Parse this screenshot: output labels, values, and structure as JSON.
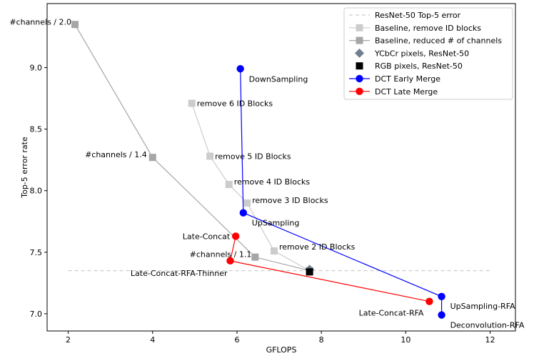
{
  "chart_data": {
    "type": "line",
    "title": "",
    "xlabel": "GFLOPS",
    "ylabel": "Top-5 error rate",
    "xlim": [
      1.5,
      12.6
    ],
    "ylim": [
      6.86,
      9.52
    ],
    "xticks": [
      2,
      4,
      6,
      8,
      10,
      12
    ],
    "yticks": [
      7.0,
      7.5,
      8.0,
      8.5,
      9.0
    ],
    "grid": false,
    "legend_position": "top-right",
    "reference_line": {
      "name": "ResNet-50 Top-5 error",
      "y": 7.35,
      "x_range": [
        2.0,
        12.0
      ],
      "color": "#cccccc",
      "style": "dashed"
    },
    "series": [
      {
        "name": "Baseline, remove ID blocks",
        "marker": "square",
        "color": "#cccccc",
        "points": [
          {
            "x": 4.93,
            "y": 8.71,
            "label": "remove 6 ID Blocks"
          },
          {
            "x": 5.36,
            "y": 8.28,
            "label": "remove 5 ID Blocks"
          },
          {
            "x": 5.81,
            "y": 8.05,
            "label": "remove 4 ID Blocks"
          },
          {
            "x": 6.24,
            "y": 7.9,
            "label": "remove 3 ID Blocks"
          },
          {
            "x": 6.88,
            "y": 7.51,
            "label": "remove 2 ID Blocks"
          },
          {
            "x": 7.72,
            "y": 7.35,
            "label": ""
          }
        ]
      },
      {
        "name": "Baseline, reduced # of channels",
        "marker": "square",
        "color": "#a6a6a6",
        "points": [
          {
            "x": 2.16,
            "y": 9.35,
            "label": "#channels / 2.0"
          },
          {
            "x": 4.0,
            "y": 8.27,
            "label": "#channels / 1.4"
          },
          {
            "x": 6.43,
            "y": 7.46,
            "label": "#channels / 1.1"
          },
          {
            "x": 7.72,
            "y": 7.35,
            "label": ""
          }
        ]
      },
      {
        "name": "YCbCr pixels, ResNet-50",
        "marker": "diamond",
        "color": "#708090",
        "points": [
          {
            "x": 7.72,
            "y": 7.36,
            "label": ""
          }
        ]
      },
      {
        "name": "RGB pixels, ResNet-50",
        "marker": "square",
        "color": "#000000",
        "points": [
          {
            "x": 7.72,
            "y": 7.34,
            "label": ""
          }
        ]
      },
      {
        "name": "DCT Early Merge",
        "marker": "circle",
        "color": "#0000ff",
        "points": [
          {
            "x": 6.08,
            "y": 8.99,
            "label": "DownSampling"
          },
          {
            "x": 6.15,
            "y": 7.82,
            "label": "UpSampling"
          },
          {
            "x": 10.85,
            "y": 7.14,
            "label": "UpSampling-RFA"
          },
          {
            "x": 10.85,
            "y": 6.99,
            "label": "Deconvolution-RFA"
          }
        ]
      },
      {
        "name": "DCT Late Merge",
        "marker": "circle",
        "color": "#ff0000",
        "points": [
          {
            "x": 5.97,
            "y": 7.63,
            "label": "Late-Concat"
          },
          {
            "x": 5.84,
            "y": 7.43,
            "label": "Late-Concat-RFA-Thinner"
          },
          {
            "x": 10.56,
            "y": 7.1,
            "label": "Late-Concat-RFA"
          }
        ]
      }
    ]
  }
}
